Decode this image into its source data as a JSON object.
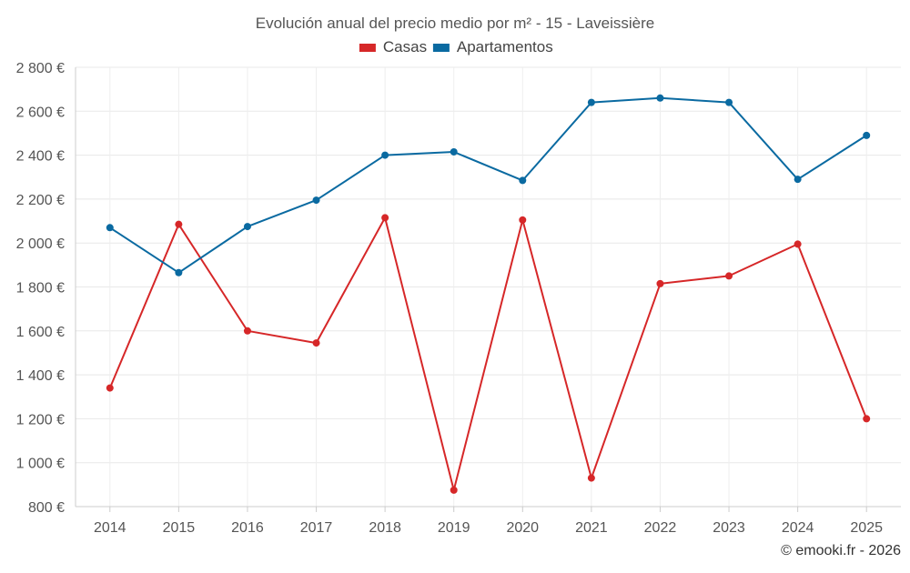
{
  "chart_data": {
    "type": "line",
    "title": "Evolución anual del precio medio por m² - 15 - Laveissière",
    "xlabel": "",
    "ylabel": "",
    "ylim": [
      800,
      2800
    ],
    "ytick_step": 200,
    "y_tick_labels": [
      "800 €",
      "1 000 €",
      "1 200 €",
      "1 400 €",
      "1 600 €",
      "1 800 €",
      "2 000 €",
      "2 200 €",
      "2 400 €",
      "2 600 €",
      "2 800 €"
    ],
    "categories": [
      "2014",
      "2015",
      "2016",
      "2017",
      "2018",
      "2019",
      "2020",
      "2021",
      "2022",
      "2023",
      "2024",
      "2025"
    ],
    "grid": true,
    "legend_position": "top-center",
    "series": [
      {
        "name": "Casas",
        "color": "#d62728",
        "values": [
          1340,
          2085,
          1600,
          1545,
          2115,
          875,
          2105,
          930,
          1815,
          1850,
          1995,
          1200
        ]
      },
      {
        "name": "Apartamentos",
        "color": "#0a6aa1",
        "values": [
          2070,
          1865,
          2075,
          2195,
          2400,
          2415,
          2285,
          2640,
          2660,
          2640,
          2290,
          2490
        ]
      }
    ],
    "credit": "© emooki.fr - 2026"
  }
}
